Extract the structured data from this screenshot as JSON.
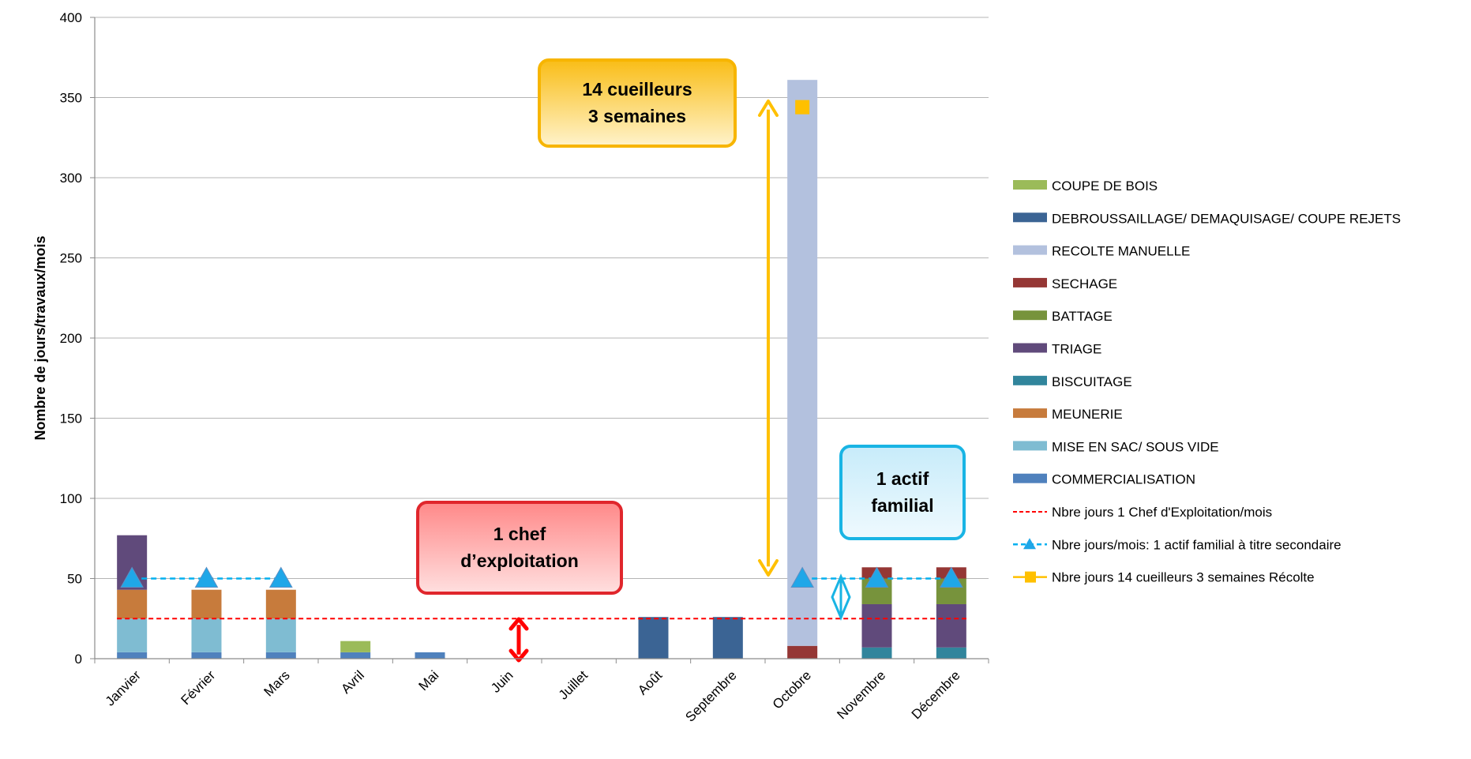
{
  "chart_data": {
    "type": "bar",
    "stacked": true,
    "ylabel": "Nombre de jours/travaux/mois",
    "ylim": [
      0,
      400
    ],
    "yticks": [
      0,
      50,
      100,
      150,
      200,
      250,
      300,
      350,
      400
    ],
    "grid": true,
    "legend_position": "right",
    "categories": [
      "Janvier",
      "Février",
      "Mars",
      "Avril",
      "Mai",
      "Juin",
      "Juillet",
      "Août",
      "Septembre",
      "Octobre",
      "Novembre",
      "Décembre"
    ],
    "series": [
      {
        "name": "COMMERCIALISATION",
        "color": "#4f81bd",
        "values": [
          4,
          4,
          4,
          4,
          4,
          0,
          0,
          0,
          0,
          0,
          0,
          0
        ]
      },
      {
        "name": "MISE EN SAC/ SOUS VIDE",
        "color": "#7fbcd2",
        "values": [
          21,
          21,
          21,
          0,
          0,
          0,
          0,
          0,
          0,
          0,
          0,
          0
        ]
      },
      {
        "name": "MEUNERIE",
        "color": "#c77b3c",
        "values": [
          18,
          18,
          18,
          0,
          0,
          0,
          0,
          0,
          0,
          0,
          0,
          0
        ]
      },
      {
        "name": "BISCUITAGE",
        "color": "#31859c",
        "values": [
          0,
          0,
          0,
          0,
          0,
          0,
          0,
          0,
          0,
          0,
          7,
          7
        ]
      },
      {
        "name": "TRIAGE",
        "color": "#604a7b",
        "values": [
          34,
          0,
          0,
          0,
          0,
          0,
          0,
          0,
          0,
          0,
          27,
          27
        ]
      },
      {
        "name": "BATTAGE",
        "color": "#77933c",
        "values": [
          0,
          0,
          0,
          0,
          0,
          0,
          0,
          0,
          0,
          0,
          16,
          16
        ]
      },
      {
        "name": "SECHAGE",
        "color": "#953735",
        "values": [
          0,
          0,
          0,
          0,
          0,
          0,
          0,
          0,
          0,
          8,
          7,
          7
        ]
      },
      {
        "name": "RECOLTE MANUELLE",
        "color": "#b3c1de",
        "values": [
          0,
          0,
          0,
          0,
          0,
          0,
          0,
          0,
          0,
          353,
          0,
          0
        ]
      },
      {
        "name": "DEBROUSSAILLAGE/ DEMAQUISAGE/ COUPE REJETS",
        "color": "#3b6494",
        "values": [
          0,
          0,
          0,
          0,
          0,
          0,
          0,
          26,
          26,
          0,
          0,
          0
        ]
      },
      {
        "name": "COUPE DE BOIS",
        "color": "#9bbb59",
        "values": [
          0,
          0,
          0,
          7,
          0,
          0,
          0,
          0,
          0,
          0,
          0,
          0
        ]
      }
    ],
    "lines": [
      {
        "name": "Nbre jours 1 Chef d'Exploitation/mois",
        "color": "#ff0000",
        "style": "dashed",
        "values": [
          25,
          25,
          25,
          25,
          25,
          25,
          25,
          25,
          25,
          25,
          25,
          25
        ]
      },
      {
        "name": "Nbre jours/mois: 1 actif familial à titre secondaire",
        "color": "#00b0f0",
        "style": "dashed-triangle",
        "values": [
          50,
          50,
          50,
          null,
          null,
          null,
          null,
          null,
          null,
          50,
          50,
          50
        ]
      },
      {
        "name": "Nbre jours 14 cueilleurs 3 semaines Récolte",
        "color": "#ffc000",
        "style": "square-marker",
        "values": [
          null,
          null,
          null,
          null,
          null,
          null,
          null,
          null,
          null,
          344,
          null,
          null
        ]
      }
    ],
    "legend": [
      "COUPE DE BOIS",
      "DEBROUSSAILLAGE/ DEMAQUISAGE/ COUPE REJETS",
      "RECOLTE MANUELLE",
      "SECHAGE",
      "BATTAGE",
      "TRIAGE",
      "BISCUITAGE",
      "MEUNERIE",
      "MISE EN SAC/ SOUS VIDE",
      "COMMERCIALISATION",
      "Nbre jours 1 Chef d'Exploitation/mois",
      "Nbre jours/mois: 1 actif familial à titre secondaire",
      "Nbre jours 14 cueilleurs 3 semaines Récolte"
    ],
    "annotations": [
      {
        "id": "picker",
        "line1": "14 cueilleurs",
        "line2": "3 semaines"
      },
      {
        "id": "chef",
        "line1": "1 chef",
        "line2": "d’exploitation"
      },
      {
        "id": "actif",
        "line1": "1 actif",
        "line2": "familial"
      }
    ]
  }
}
